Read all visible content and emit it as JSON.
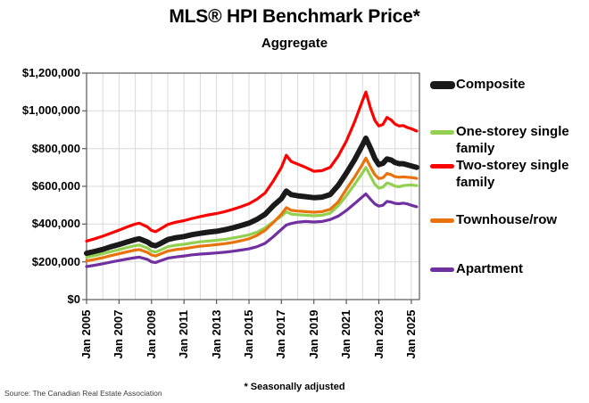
{
  "chart_data": {
    "type": "line",
    "title": "MLS® HPI Benchmark Price*",
    "subtitle": "Aggregate",
    "footnote": "* Seasonally adjusted",
    "source": "Source: The Canadian Real Estate Association",
    "legend_position": "right",
    "grid": true,
    "ylim": [
      0,
      1200000
    ],
    "x_domain": [
      2005,
      2025.5
    ],
    "y_ticks": [
      {
        "label": "$1,200,000",
        "value": 1200000
      },
      {
        "label": "$1,000,000",
        "value": 1000000
      },
      {
        "label": "$800,000",
        "value": 800000
      },
      {
        "label": "$600,000",
        "value": 600000
      },
      {
        "label": "$400,000",
        "value": 400000
      },
      {
        "label": "$200,000",
        "value": 200000
      },
      {
        "label": "$0",
        "value": 0
      }
    ],
    "x_ticks": [
      {
        "label": "Jan 2005",
        "value": 2005
      },
      {
        "label": "Jan 2007",
        "value": 2007
      },
      {
        "label": "Jan 2009",
        "value": 2009
      },
      {
        "label": "Jan 2011",
        "value": 2011
      },
      {
        "label": "Jan 2013",
        "value": 2013
      },
      {
        "label": "Jan 2015",
        "value": 2015
      },
      {
        "label": "Jan 2017",
        "value": 2017
      },
      {
        "label": "Jan 2019",
        "value": 2019
      },
      {
        "label": "Jan 2021",
        "value": 2021
      },
      {
        "label": "Jan 2023",
        "value": 2023
      },
      {
        "label": "Jan 2025",
        "value": 2025
      }
    ],
    "x": [
      2005.0,
      2005.5,
      2006.0,
      2006.5,
      2007.0,
      2007.5,
      2008.0,
      2008.25,
      2008.75,
      2009.0,
      2009.25,
      2009.5,
      2010.0,
      2010.5,
      2011.0,
      2011.5,
      2012.0,
      2012.5,
      2013.0,
      2013.5,
      2014.0,
      2014.5,
      2015.0,
      2015.5,
      2016.0,
      2016.5,
      2017.0,
      2017.3,
      2017.6,
      2018.0,
      2018.5,
      2019.0,
      2019.5,
      2020.0,
      2020.5,
      2021.0,
      2021.5,
      2022.0,
      2022.2,
      2022.5,
      2022.75,
      2023.0,
      2023.25,
      2023.5,
      2023.75,
      2024.0,
      2024.25,
      2024.5,
      2024.75,
      2025.0,
      2025.33
    ],
    "series": [
      {
        "name": "Composite",
        "color": "#1a1a1a",
        "line_width": 6,
        "values": [
          245000,
          255000,
          266000,
          280000,
          292000,
          305000,
          318000,
          322000,
          305000,
          290000,
          285000,
          295000,
          318000,
          328000,
          334000,
          344000,
          351000,
          357000,
          362000,
          370000,
          380000,
          392000,
          405000,
          425000,
          452000,
          497000,
          535000,
          575000,
          556000,
          550000,
          545000,
          540000,
          543000,
          556000,
          605000,
          670000,
          740000,
          820000,
          855000,
          800000,
          748000,
          715000,
          722000,
          745000,
          740000,
          726000,
          720000,
          720000,
          714000,
          708000,
          700000
        ]
      },
      {
        "name": "One-storey single family",
        "color": "#92D050",
        "line_width": 3.2,
        "values": [
          225000,
          233000,
          243000,
          254000,
          265000,
          276000,
          286000,
          289000,
          273000,
          257000,
          252000,
          261000,
          280000,
          288000,
          293000,
          300000,
          306000,
          310000,
          314000,
          319000,
          326000,
          334000,
          343000,
          357000,
          380000,
          412000,
          442000,
          465000,
          453000,
          450000,
          447000,
          444000,
          447000,
          458000,
          497000,
          550000,
          610000,
          672000,
          700000,
          652000,
          612000,
          590000,
          596000,
          618000,
          612000,
          601000,
          598000,
          604000,
          606000,
          608000,
          604000
        ]
      },
      {
        "name": "Two-storey single family",
        "color": "#FF0000",
        "line_width": 3.2,
        "values": [
          310000,
          322000,
          336000,
          352000,
          368000,
          385000,
          400000,
          405000,
          385000,
          366000,
          360000,
          372000,
          398000,
          410000,
          418000,
          430000,
          440000,
          449000,
          456000,
          466000,
          478000,
          492000,
          508000,
          532000,
          565000,
          628000,
          700000,
          765000,
          732000,
          718000,
          700000,
          680000,
          683000,
          700000,
          760000,
          840000,
          940000,
          1055000,
          1100000,
          1010000,
          950000,
          920000,
          928000,
          965000,
          952000,
          930000,
          920000,
          922000,
          912000,
          905000,
          893000
        ]
      },
      {
        "name": "Townhouse/row",
        "color": "#E8720B",
        "line_width": 3.2,
        "values": [
          205000,
          213000,
          222000,
          233000,
          243000,
          253000,
          262000,
          265000,
          250000,
          236000,
          231000,
          240000,
          257000,
          265000,
          270000,
          277000,
          283000,
          287000,
          291000,
          296000,
          303000,
          312000,
          322000,
          340000,
          367000,
          408000,
          452000,
          487000,
          473000,
          469000,
          466000,
          463000,
          466000,
          478000,
          518000,
          585000,
          648000,
          718000,
          750000,
          700000,
          662000,
          641000,
          646000,
          668000,
          662000,
          651000,
          648000,
          650000,
          648000,
          647000,
          642000
        ]
      },
      {
        "name": "Apartment",
        "color": "#7030A0",
        "line_width": 3.2,
        "values": [
          175000,
          182000,
          190000,
          199000,
          207000,
          215000,
          222000,
          225000,
          213000,
          200000,
          196000,
          204000,
          219000,
          226000,
          231000,
          237000,
          241000,
          244000,
          247000,
          251000,
          256000,
          262000,
          269000,
          280000,
          298000,
          333000,
          372000,
          395000,
          403000,
          410000,
          414000,
          411000,
          414000,
          424000,
          442000,
          472000,
          508000,
          545000,
          560000,
          530000,
          507000,
          495000,
          500000,
          520000,
          517000,
          510000,
          508000,
          511000,
          507000,
          500000,
          492000
        ]
      }
    ],
    "colors": {
      "gridline": "#d9d9d9",
      "axis": "#595959",
      "background": "#ffffff"
    }
  }
}
